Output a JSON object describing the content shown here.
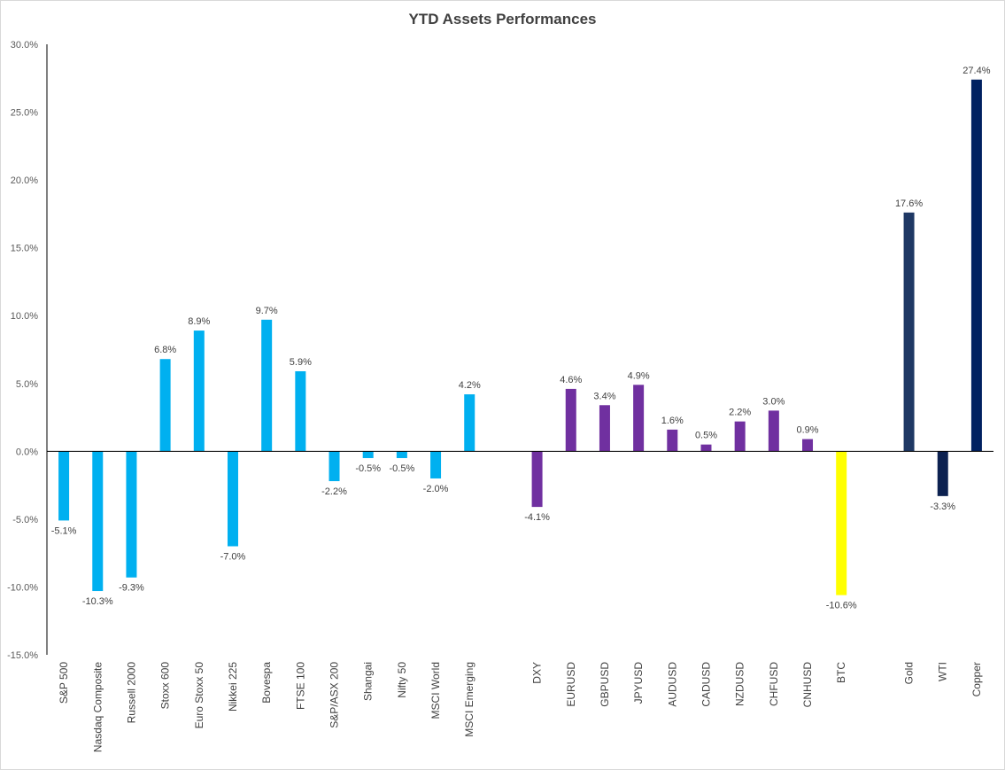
{
  "chart_data": {
    "type": "bar",
    "title": "YTD Assets Performances",
    "xlabel": "",
    "ylabel": "",
    "ylim": [
      -15,
      30
    ],
    "yticks": [
      -15,
      -10,
      -5,
      0,
      5,
      10,
      15,
      20,
      25,
      30
    ],
    "ytick_labels": [
      "-15.0%",
      "-10.0%",
      "-5.0%",
      "0.0%",
      "5.0%",
      "10.0%",
      "15.0%",
      "20.0%",
      "25.0%",
      "30.0%"
    ],
    "grid": false,
    "legend": "none",
    "colors": {
      "equities": "#00b0f0",
      "fx": "#7030a0",
      "crypto": "#ffff00",
      "gold": "#1f3864",
      "wti": "#0c2150",
      "copper": "#002060"
    },
    "categories": [
      "S&P 500",
      "Nasdaq Composite",
      "Russell 2000",
      "Stoxx 600",
      "Euro Stoxx 50",
      "Nikkei 225",
      "Bovespa",
      "FTSE 100",
      "S&P/ASX 200",
      "Shangai",
      "Nifty 50",
      "MSCI World",
      "MSCI Emerging",
      "",
      "DXY",
      "EURUSD",
      "GBPUSD",
      "JPYUSD",
      "AUDUSD",
      "CADUSD",
      "NZDUSD",
      "CHFUSD",
      "CNHUSD",
      "BTC",
      "",
      "Gold",
      "WTI",
      "Copper"
    ],
    "values": [
      -5.1,
      -10.3,
      -9.3,
      6.8,
      8.9,
      -7.0,
      9.7,
      5.9,
      -2.2,
      -0.5,
      -0.5,
      -2.0,
      4.2,
      null,
      -4.1,
      4.6,
      3.4,
      4.9,
      1.6,
      0.5,
      2.2,
      3.0,
      0.9,
      -10.6,
      null,
      17.6,
      -3.3,
      27.4
    ],
    "value_labels": [
      "-5.1%",
      "-10.3%",
      "-9.3%",
      "6.8%",
      "8.9%",
      "-7.0%",
      "9.7%",
      "5.9%",
      "-2.2%",
      "-0.5%",
      "-0.5%",
      "-2.0%",
      "4.2%",
      "",
      "-4.1%",
      "4.6%",
      "3.4%",
      "4.9%",
      "1.6%",
      "0.5%",
      "2.2%",
      "3.0%",
      "0.9%",
      "-10.6%",
      "",
      "17.6%",
      "-3.3%",
      "27.4%"
    ],
    "bar_color_keys": [
      "equities",
      "equities",
      "equities",
      "equities",
      "equities",
      "equities",
      "equities",
      "equities",
      "equities",
      "equities",
      "equities",
      "equities",
      "equities",
      "",
      "fx",
      "fx",
      "fx",
      "fx",
      "fx",
      "fx",
      "fx",
      "fx",
      "fx",
      "crypto",
      "",
      "gold",
      "wti",
      "copper"
    ]
  }
}
